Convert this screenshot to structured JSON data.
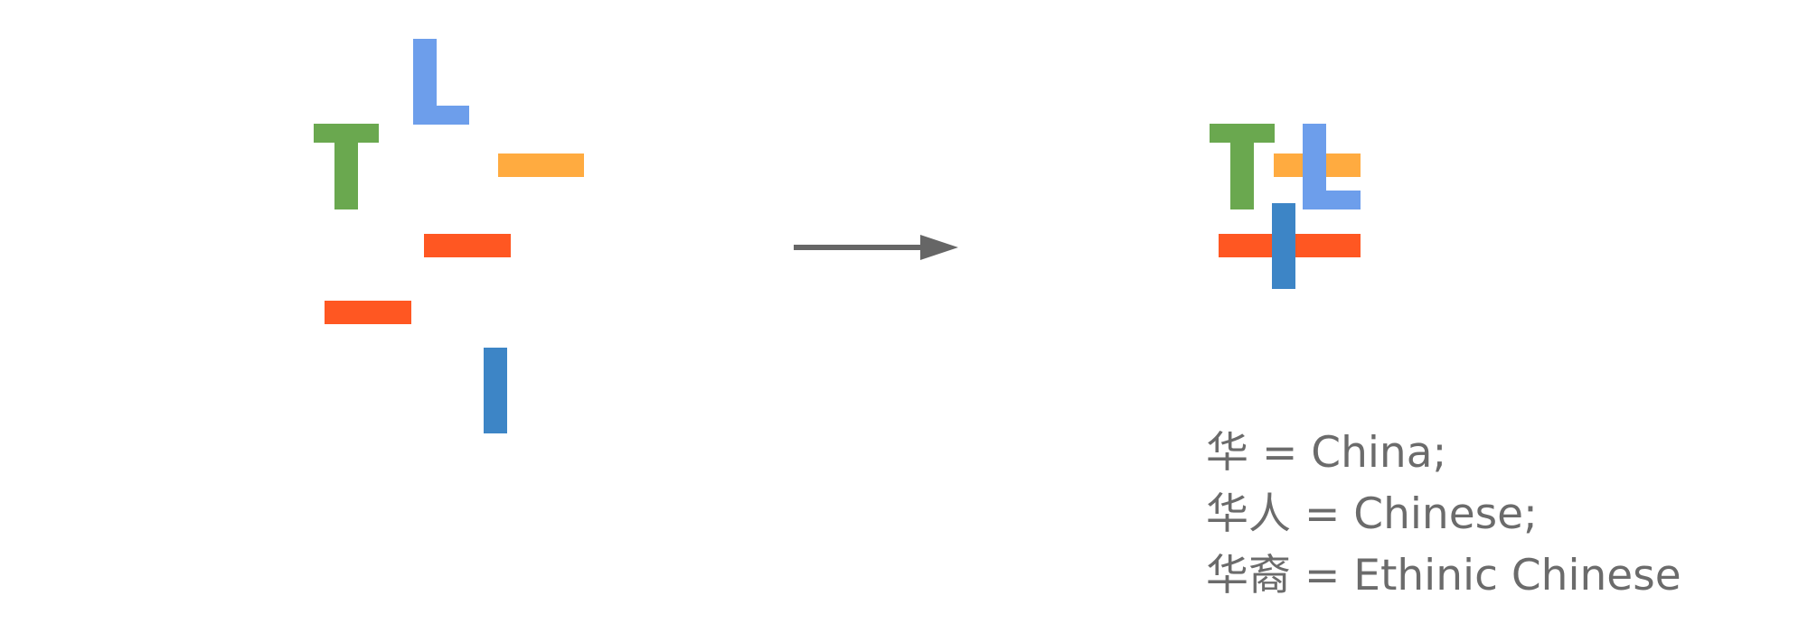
{
  "colors": {
    "green": "#6aa84f",
    "light_blue": "#6d9eeb",
    "orange": "#ffab40",
    "red_orange": "#ff5722",
    "blue": "#3d85c6",
    "arrow": "#666666",
    "text": "#6b6b6b"
  },
  "caption": {
    "line1": "华 = China;",
    "line2": "华人 = Chinese;",
    "line3": "华裔 = Ethinic Chinese"
  }
}
